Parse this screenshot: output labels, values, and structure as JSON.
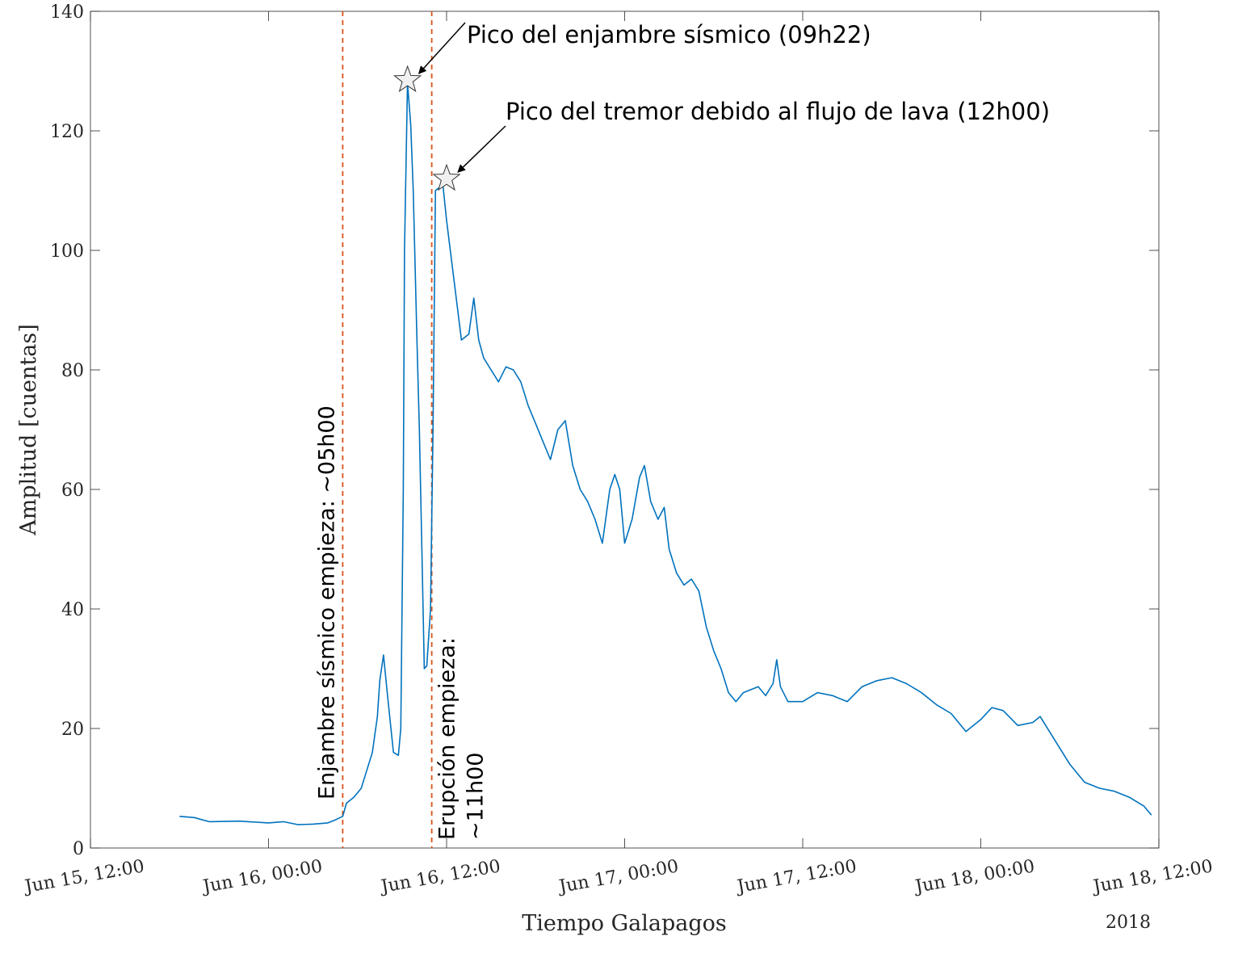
{
  "chart_data": {
    "type": "line",
    "xlabel": "Tiempo Galapagos",
    "ylabel": "Amplitud [cuentas]",
    "year_label": "2018",
    "ylim": [
      0,
      140
    ],
    "xlim": [
      "2018-06-15 12:00",
      "2018-06-18 12:00"
    ],
    "y_ticks": [
      0,
      20,
      40,
      60,
      80,
      100,
      120,
      140
    ],
    "x_ticks": [
      {
        "t": "2018-06-15 12:00",
        "label": "Jun 15, 12:00"
      },
      {
        "t": "2018-06-16 00:00",
        "label": "Jun 16, 00:00"
      },
      {
        "t": "2018-06-16 12:00",
        "label": "Jun 16, 12:00"
      },
      {
        "t": "2018-06-17 00:00",
        "label": "Jun 17, 00:00"
      },
      {
        "t": "2018-06-17 12:00",
        "label": "Jun 17, 12:00"
      },
      {
        "t": "2018-06-18 00:00",
        "label": "Jun 18, 00:00"
      },
      {
        "t": "2018-06-18 12:00",
        "label": "Jun 18, 12:00"
      }
    ],
    "grid": false,
    "colors": {
      "series": "#0072bd",
      "event_lines": "#d95319",
      "axes": "#262626"
    },
    "series": [
      {
        "points": [
          [
            "2018-06-15 18:00",
            5.3
          ],
          [
            "2018-06-15 19:00",
            5.1
          ],
          [
            "2018-06-15 20:00",
            4.4
          ],
          [
            "2018-06-15 22:00",
            4.5
          ],
          [
            "2018-06-16 00:00",
            4.2
          ],
          [
            "2018-06-16 01:00",
            4.4
          ],
          [
            "2018-06-16 02:00",
            3.9
          ],
          [
            "2018-06-16 03:00",
            4.0
          ],
          [
            "2018-06-16 04:00",
            4.2
          ],
          [
            "2018-06-16 04:30",
            4.7
          ],
          [
            "2018-06-16 05:00",
            5.3
          ],
          [
            "2018-06-16 05:15",
            7.5
          ],
          [
            "2018-06-16 05:45",
            8.5
          ],
          [
            "2018-06-16 06:15",
            10.0
          ],
          [
            "2018-06-16 06:30",
            12.0
          ],
          [
            "2018-06-16 07:00",
            16.0
          ],
          [
            "2018-06-16 07:20",
            22.0
          ],
          [
            "2018-06-16 07:30",
            28.0
          ],
          [
            "2018-06-16 07:45",
            32.3
          ],
          [
            "2018-06-16 08:00",
            26.0
          ],
          [
            "2018-06-16 08:15",
            20.0
          ],
          [
            "2018-06-16 08:25",
            16.0
          ],
          [
            "2018-06-16 08:45",
            15.5
          ],
          [
            "2018-06-16 08:55",
            20.0
          ],
          [
            "2018-06-16 09:05",
            60.0
          ],
          [
            "2018-06-16 09:10",
            100.0
          ],
          [
            "2018-06-16 09:22",
            128.0
          ],
          [
            "2018-06-16 09:35",
            121.0
          ],
          [
            "2018-06-16 09:45",
            110.0
          ],
          [
            "2018-06-16 10:00",
            85.0
          ],
          [
            "2018-06-16 10:10",
            70.0
          ],
          [
            "2018-06-16 10:20",
            50.0
          ],
          [
            "2018-06-16 10:30",
            30.0
          ],
          [
            "2018-06-16 10:40",
            30.5
          ],
          [
            "2018-06-16 10:55",
            40.0
          ],
          [
            "2018-06-16 11:05",
            70.0
          ],
          [
            "2018-06-16 11:15",
            110.0
          ],
          [
            "2018-06-16 11:45",
            111.0
          ],
          [
            "2018-06-16 12:00",
            105.0
          ],
          [
            "2018-06-16 12:30",
            95.0
          ],
          [
            "2018-06-16 13:00",
            85.0
          ],
          [
            "2018-06-16 13:30",
            86.0
          ],
          [
            "2018-06-16 13:50",
            92.0
          ],
          [
            "2018-06-16 14:10",
            85.0
          ],
          [
            "2018-06-16 14:30",
            82.0
          ],
          [
            "2018-06-16 15:00",
            80.0
          ],
          [
            "2018-06-16 15:30",
            78.0
          ],
          [
            "2018-06-16 16:00",
            80.5
          ],
          [
            "2018-06-16 16:30",
            80.0
          ],
          [
            "2018-06-16 17:00",
            78.0
          ],
          [
            "2018-06-16 17:30",
            74.0
          ],
          [
            "2018-06-16 18:00",
            71.0
          ],
          [
            "2018-06-16 18:30",
            68.0
          ],
          [
            "2018-06-16 19:00",
            65.0
          ],
          [
            "2018-06-16 19:30",
            70.0
          ],
          [
            "2018-06-16 20:00",
            71.5
          ],
          [
            "2018-06-16 20:30",
            64.0
          ],
          [
            "2018-06-16 21:00",
            60.0
          ],
          [
            "2018-06-16 21:30",
            58.0
          ],
          [
            "2018-06-16 22:00",
            55.0
          ],
          [
            "2018-06-16 22:30",
            51.0
          ],
          [
            "2018-06-16 23:00",
            60.0
          ],
          [
            "2018-06-16 23:20",
            62.5
          ],
          [
            "2018-06-16 23:40",
            60.0
          ],
          [
            "2018-06-17 00:00",
            51.0
          ],
          [
            "2018-06-17 00:30",
            55.0
          ],
          [
            "2018-06-17 01:00",
            62.0
          ],
          [
            "2018-06-17 01:20",
            64.0
          ],
          [
            "2018-06-17 01:45",
            58.0
          ],
          [
            "2018-06-17 02:15",
            55.0
          ],
          [
            "2018-06-17 02:40",
            57.0
          ],
          [
            "2018-06-17 03:00",
            50.0
          ],
          [
            "2018-06-17 03:30",
            46.0
          ],
          [
            "2018-06-17 04:00",
            44.0
          ],
          [
            "2018-06-17 04:30",
            45.0
          ],
          [
            "2018-06-17 05:00",
            43.0
          ],
          [
            "2018-06-17 05:30",
            37.0
          ],
          [
            "2018-06-17 06:00",
            33.0
          ],
          [
            "2018-06-17 06:30",
            30.0
          ],
          [
            "2018-06-17 07:00",
            26.0
          ],
          [
            "2018-06-17 07:30",
            24.5
          ],
          [
            "2018-06-17 08:00",
            26.0
          ],
          [
            "2018-06-17 09:00",
            27.0
          ],
          [
            "2018-06-17 09:30",
            25.5
          ],
          [
            "2018-06-17 10:00",
            27.5
          ],
          [
            "2018-06-17 10:15",
            31.5
          ],
          [
            "2018-06-17 10:30",
            27.0
          ],
          [
            "2018-06-17 11:00",
            24.5
          ],
          [
            "2018-06-17 12:00",
            24.5
          ],
          [
            "2018-06-17 13:00",
            26.0
          ],
          [
            "2018-06-17 14:00",
            25.5
          ],
          [
            "2018-06-17 15:00",
            24.5
          ],
          [
            "2018-06-17 16:00",
            27.0
          ],
          [
            "2018-06-17 17:00",
            28.0
          ],
          [
            "2018-06-17 18:00",
            28.5
          ],
          [
            "2018-06-17 19:00",
            27.5
          ],
          [
            "2018-06-17 20:00",
            26.0
          ],
          [
            "2018-06-17 21:00",
            24.0
          ],
          [
            "2018-06-17 22:00",
            22.5
          ],
          [
            "2018-06-17 23:00",
            19.5
          ],
          [
            "2018-06-18 00:00",
            21.5
          ],
          [
            "2018-06-18 00:45",
            23.5
          ],
          [
            "2018-06-18 01:30",
            23.0
          ],
          [
            "2018-06-18 02:30",
            20.5
          ],
          [
            "2018-06-18 03:30",
            21.0
          ],
          [
            "2018-06-18 04:00",
            22.0
          ],
          [
            "2018-06-18 05:00",
            18.0
          ],
          [
            "2018-06-18 06:00",
            14.0
          ],
          [
            "2018-06-18 07:00",
            11.0
          ],
          [
            "2018-06-18 08:00",
            10.0
          ],
          [
            "2018-06-18 09:00",
            9.5
          ],
          [
            "2018-06-18 10:00",
            8.5
          ],
          [
            "2018-06-18 11:00",
            7.0
          ],
          [
            "2018-06-18 11:30",
            5.5
          ]
        ]
      }
    ],
    "event_lines": [
      {
        "t": "2018-06-16 05:00",
        "label": "Enjambre sísmico empieza: ~05h00"
      },
      {
        "t": "2018-06-16 11:00",
        "label_lines": [
          "Erupción empieza:",
          "~11h00"
        ]
      }
    ],
    "annotations": [
      {
        "t": "2018-06-16 09:22",
        "y": 128.5,
        "marker": "star",
        "text": "Pico del enjambre sísmico (09h22)"
      },
      {
        "t": "2018-06-16 12:00",
        "y": 112.0,
        "marker": "star",
        "text": "Pico del tremor debido al flujo de lava (12h00)"
      }
    ]
  }
}
